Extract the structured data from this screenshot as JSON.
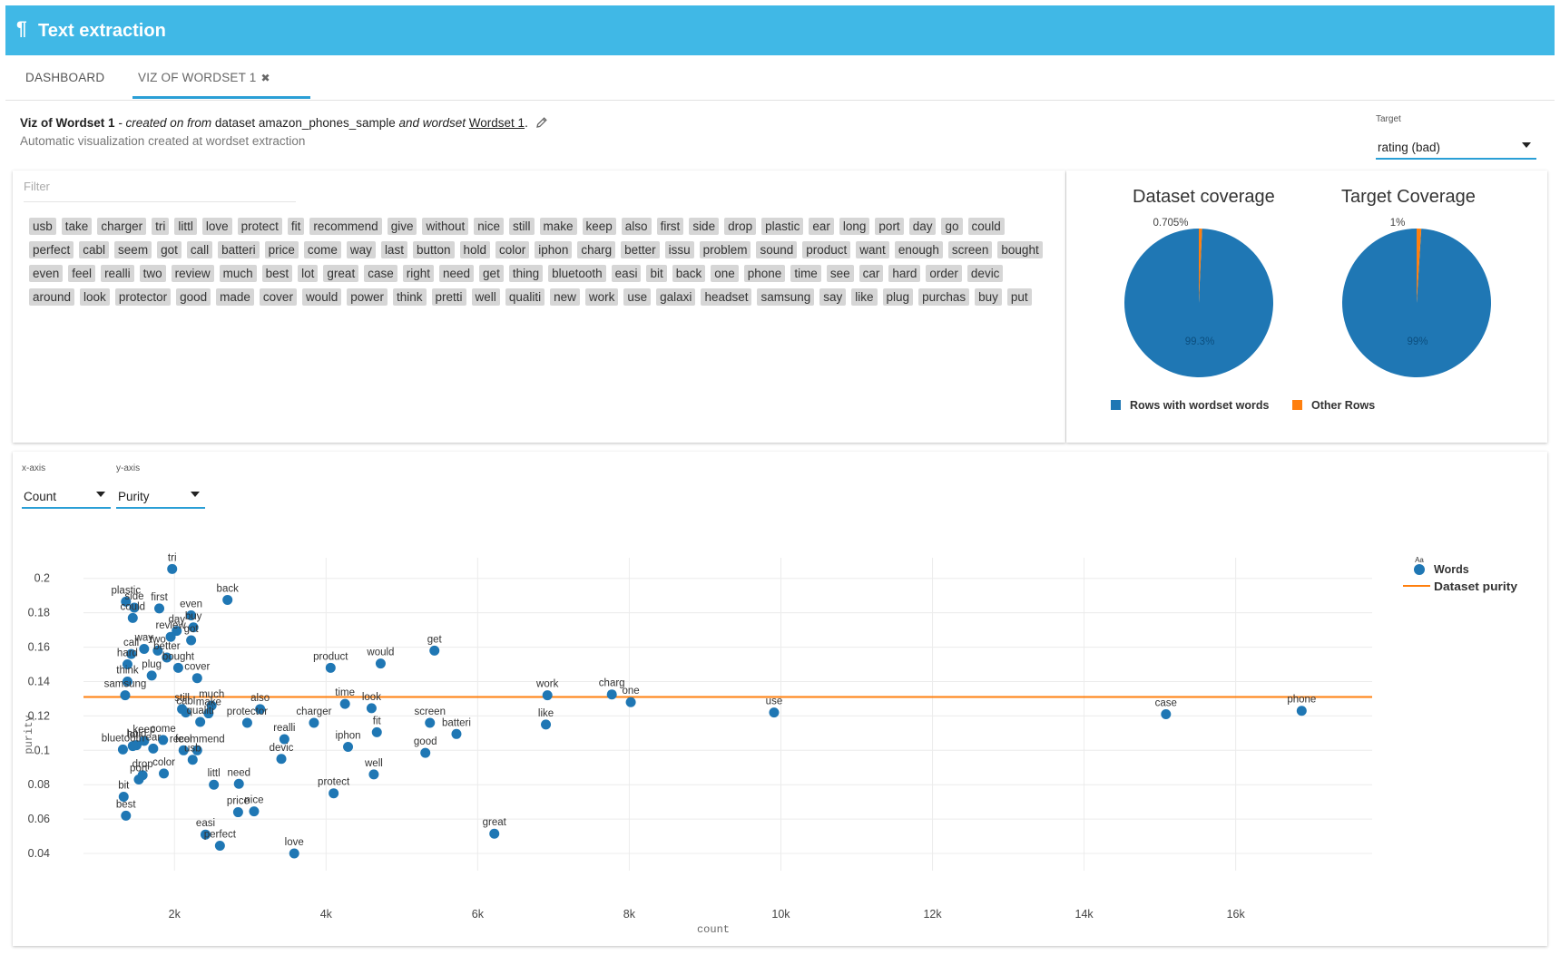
{
  "app": {
    "title": "Text extraction",
    "icon": "pilcrow-icon"
  },
  "tabs": [
    {
      "label": "DASHBOARD"
    },
    {
      "label": "VIZ OF WORDSET 1",
      "close_icon": "✖"
    }
  ],
  "header": {
    "name": "Viz of Wordset 1",
    "created": " - created on from",
    "dataset_prefix": " dataset ",
    "dataset": "amazon_phones_sample",
    "and_wordset": " and wordset ",
    "wordset": "Wordset 1",
    "period": ".",
    "subtitle": "Automatic visualization created at wordset extraction"
  },
  "target": {
    "label": "Target",
    "value": "rating (bad)"
  },
  "filter": {
    "placeholder": "Filter"
  },
  "words": [
    "usb",
    "take",
    "charger",
    "tri",
    "littl",
    "love",
    "protect",
    "fit",
    "recommend",
    "give",
    "without",
    "nice",
    "still",
    "make",
    "keep",
    "also",
    "first",
    "side",
    "drop",
    "plastic",
    "ear",
    "long",
    "port",
    "day",
    "go",
    "could",
    "perfect",
    "cabl",
    "seem",
    "got",
    "call",
    "batteri",
    "price",
    "come",
    "way",
    "last",
    "button",
    "hold",
    "color",
    "iphon",
    "charg",
    "better",
    "issu",
    "problem",
    "sound",
    "product",
    "want",
    "enough",
    "screen",
    "bought",
    "even",
    "feel",
    "realli",
    "two",
    "review",
    "much",
    "best",
    "lot",
    "great",
    "case",
    "right",
    "need",
    "get",
    "thing",
    "bluetooth",
    "easi",
    "bit",
    "back",
    "one",
    "phone",
    "time",
    "see",
    "car",
    "hard",
    "order",
    "devic",
    "around",
    "look",
    "protector",
    "good",
    "made",
    "cover",
    "would",
    "power",
    "think",
    "pretti",
    "well",
    "qualiti",
    "new",
    "work",
    "use",
    "galaxi",
    "headset",
    "samsung",
    "say",
    "like",
    "plug",
    "purchas",
    "buy",
    "put"
  ],
  "coverage": {
    "dataset": {
      "title": "Dataset coverage",
      "small_label": "0.705%",
      "big_label": "99.3%",
      "fraction": 0.00705
    },
    "target": {
      "title": "Target Coverage",
      "small_label": "1%",
      "big_label": "99%",
      "fraction": 0.01
    },
    "legend": [
      {
        "label": "Rows with wordset words",
        "color": "#1f77b4"
      },
      {
        "label": "Other Rows",
        "color": "#ff7f0e"
      }
    ]
  },
  "axes": {
    "x_label": "x-axis",
    "x_value": "Count",
    "y_label": "y-axis",
    "y_value": "Purity"
  },
  "chart_data": {
    "type": "scatter",
    "xlabel": "count",
    "ylabel": "purity",
    "xticks": [
      {
        "v": 2000,
        "label": "2k"
      },
      {
        "v": 4000,
        "label": "4k"
      },
      {
        "v": 6000,
        "label": "6k"
      },
      {
        "v": 8000,
        "label": "8k"
      },
      {
        "v": 10000,
        "label": "10k"
      },
      {
        "v": 12000,
        "label": "12k"
      },
      {
        "v": 14000,
        "label": "14k"
      },
      {
        "v": 16000,
        "label": "16k"
      }
    ],
    "yticks": [
      0.04,
      0.06,
      0.08,
      0.1,
      0.12,
      0.14,
      0.16,
      0.18,
      0.2
    ],
    "xlim": [
      800,
      17800
    ],
    "ylim": [
      0.03,
      0.212
    ],
    "legend": {
      "symbol": "Aa",
      "words": "Words",
      "purity": "Dataset purity"
    },
    "dataset_purity": 0.131,
    "series": [
      {
        "name": "Words",
        "points": [
          {
            "w": "tri",
            "x": 1970,
            "y": 0.2055
          },
          {
            "w": "plastic",
            "x": 1360,
            "y": 0.1865
          },
          {
            "w": "back",
            "x": 2700,
            "y": 0.1875
          },
          {
            "w": "first",
            "x": 1800,
            "y": 0.1825
          },
          {
            "w": "side",
            "x": 1470,
            "y": 0.183
          },
          {
            "w": "could",
            "x": 1450,
            "y": 0.177
          },
          {
            "w": "even",
            "x": 2220,
            "y": 0.1785
          },
          {
            "w": "buy",
            "x": 2250,
            "y": 0.1715
          },
          {
            "w": "day",
            "x": 2030,
            "y": 0.1695
          },
          {
            "w": "got",
            "x": 2220,
            "y": 0.164
          },
          {
            "w": "way",
            "x": 1600,
            "y": 0.159
          },
          {
            "w": "review",
            "x": 1950,
            "y": 0.166
          },
          {
            "w": "two",
            "x": 1780,
            "y": 0.158
          },
          {
            "w": "call",
            "x": 1430,
            "y": 0.156
          },
          {
            "w": "better",
            "x": 1900,
            "y": 0.154
          },
          {
            "w": "bought",
            "x": 2050,
            "y": 0.148
          },
          {
            "w": "hard",
            "x": 1380,
            "y": 0.15
          },
          {
            "w": "plug",
            "x": 1700,
            "y": 0.1435
          },
          {
            "w": "cover",
            "x": 2300,
            "y": 0.142
          },
          {
            "w": "think",
            "x": 1380,
            "y": 0.14
          },
          {
            "w": "samsung",
            "x": 1350,
            "y": 0.132
          },
          {
            "w": "product",
            "x": 4060,
            "y": 0.148
          },
          {
            "w": "would",
            "x": 4720,
            "y": 0.1505
          },
          {
            "w": "get",
            "x": 5430,
            "y": 0.158
          },
          {
            "w": "time",
            "x": 4250,
            "y": 0.127
          },
          {
            "w": "look",
            "x": 4600,
            "y": 0.1245
          },
          {
            "w": "make",
            "x": 2450,
            "y": 0.1215
          },
          {
            "w": "also",
            "x": 3130,
            "y": 0.124
          },
          {
            "w": "much",
            "x": 2490,
            "y": 0.126
          },
          {
            "w": "cabl",
            "x": 2150,
            "y": 0.122
          },
          {
            "w": "still",
            "x": 2100,
            "y": 0.124
          },
          {
            "w": "protector",
            "x": 2960,
            "y": 0.116
          },
          {
            "w": "qualiti",
            "x": 2340,
            "y": 0.1165
          },
          {
            "w": "charger",
            "x": 3840,
            "y": 0.116
          },
          {
            "w": "fit",
            "x": 4670,
            "y": 0.1105
          },
          {
            "w": "iphon",
            "x": 4290,
            "y": 0.102
          },
          {
            "w": "screen",
            "x": 5370,
            "y": 0.116
          },
          {
            "w": "batteri",
            "x": 5720,
            "y": 0.1095
          },
          {
            "w": "good",
            "x": 5310,
            "y": 0.0985
          },
          {
            "w": "realli",
            "x": 3450,
            "y": 0.1065
          },
          {
            "w": "devic",
            "x": 3410,
            "y": 0.095
          },
          {
            "w": "recommend",
            "x": 2300,
            "y": 0.1
          },
          {
            "w": "feel",
            "x": 2120,
            "y": 0.1
          },
          {
            "w": "hold",
            "x": 1500,
            "y": 0.103
          },
          {
            "w": "keep",
            "x": 1600,
            "y": 0.1055
          },
          {
            "w": "come",
            "x": 1850,
            "y": 0.106
          },
          {
            "w": "ear",
            "x": 1720,
            "y": 0.101
          },
          {
            "w": "bluetooth",
            "x": 1320,
            "y": 0.1005
          },
          {
            "w": "lot",
            "x": 1450,
            "y": 0.1025
          },
          {
            "w": "color",
            "x": 1860,
            "y": 0.0865
          },
          {
            "w": "drop",
            "x": 1580,
            "y": 0.0855
          },
          {
            "w": "port",
            "x": 1530,
            "y": 0.083
          },
          {
            "w": "bit",
            "x": 1330,
            "y": 0.073
          },
          {
            "w": "best",
            "x": 1360,
            "y": 0.062
          },
          {
            "w": "usb",
            "x": 2240,
            "y": 0.0945
          },
          {
            "w": "littl",
            "x": 2520,
            "y": 0.08
          },
          {
            "w": "need",
            "x": 2850,
            "y": 0.0805
          },
          {
            "w": "price",
            "x": 2840,
            "y": 0.064
          },
          {
            "w": "nice",
            "x": 3050,
            "y": 0.0645
          },
          {
            "w": "easi",
            "x": 2410,
            "y": 0.051
          },
          {
            "w": "perfect",
            "x": 2600,
            "y": 0.0445
          },
          {
            "w": "love",
            "x": 3580,
            "y": 0.04
          },
          {
            "w": "protect",
            "x": 4100,
            "y": 0.075
          },
          {
            "w": "well",
            "x": 4630,
            "y": 0.086
          },
          {
            "w": "great",
            "x": 6220,
            "y": 0.0515
          },
          {
            "w": "work",
            "x": 6920,
            "y": 0.132
          },
          {
            "w": "like",
            "x": 6900,
            "y": 0.115
          },
          {
            "w": "charg",
            "x": 7770,
            "y": 0.1325
          },
          {
            "w": "one",
            "x": 8020,
            "y": 0.128
          },
          {
            "w": "use",
            "x": 9910,
            "y": 0.122
          },
          {
            "w": "case",
            "x": 15080,
            "y": 0.121
          },
          {
            "w": "phone",
            "x": 16870,
            "y": 0.123
          }
        ]
      }
    ]
  }
}
